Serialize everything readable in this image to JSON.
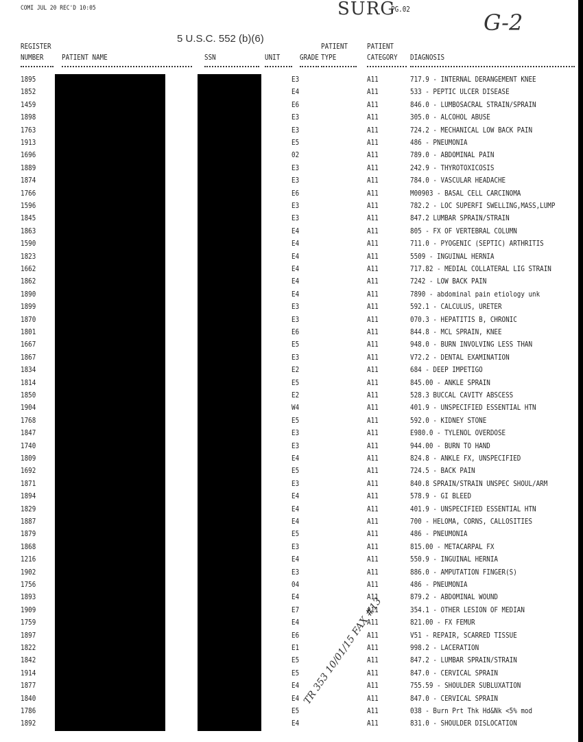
{
  "header": {
    "fax_line": "COMI  JUL 20 REC'D 10:05",
    "handwritten_dept": "SURG",
    "page": "PG.02",
    "handwritten_code": "G-2",
    "exemption": "5 U.S.C. 552 (b)(6)"
  },
  "table": {
    "columns": [
      [
        "REGISTER",
        "NUMBER"
      ],
      [
        "PATIENT NAME"
      ],
      [
        "SSN"
      ],
      [
        "UNIT"
      ],
      [
        "GRADE"
      ],
      [
        "PATIENT",
        "TYPE"
      ],
      [
        "PATIENT",
        "CATEGORY"
      ],
      [
        "DIAGNOSIS"
      ]
    ],
    "rows": [
      [
        "1895",
        "E3",
        "A11",
        "717.9 - INTERNAL DERANGEMENT KNEE"
      ],
      [
        "1852",
        "E4",
        "A11",
        "533 - PEPTIC ULCER DISEASE"
      ],
      [
        "1459",
        "E6",
        "A11",
        "846.0 - LUMBOSACRAL STRAIN/SPRAIN"
      ],
      [
        "1898",
        "E3",
        "A11",
        "305.0 - ALCOHOL ABUSE"
      ],
      [
        "1763",
        "E3",
        "A11",
        "724.2 - MECHANICAL LOW BACK PAIN"
      ],
      [
        "1913",
        "E5",
        "A11",
        "486 - PNEUMONIA"
      ],
      [
        "1696",
        "02",
        "A11",
        "789.0 - ABDOMINAL PAIN"
      ],
      [
        "1889",
        "E3",
        "A11",
        "242.9 - THYROTOXICOSIS"
      ],
      [
        "1874",
        "E3",
        "A11",
        "784.0 - VASCULAR HEADACHE"
      ],
      [
        "1766",
        "E6",
        "A11",
        "M00903 - BASAL CELL CARCINOMA"
      ],
      [
        "1596",
        "E3",
        "A11",
        "782.2 - LOC SUPERFI SWELLING,MASS,LUMP"
      ],
      [
        "1845",
        "E3",
        "A11",
        "847.2  LUMBAR SPRAIN/STRAIN"
      ],
      [
        "1863",
        "E4",
        "A11",
        "805 - FX OF VERTEBRAL COLUMN"
      ],
      [
        "1590",
        "E4",
        "A11",
        "711.0 - PYOGENIC (SEPTIC) ARTHRITIS"
      ],
      [
        "1823",
        "E4",
        "A11",
        "5509 - INGUINAL HERNIA"
      ],
      [
        "1662",
        "E4",
        "A11",
        "717.82 - MEDIAL COLLATERAL LIG STRAIN"
      ],
      [
        "1862",
        "E4",
        "A11",
        "7242 - LOW BACK PAIN"
      ],
      [
        "1890",
        "E4",
        "A11",
        "7890 - abdominal pain etiology unk"
      ],
      [
        "1899",
        "E3",
        "A11",
        "592.1 - CALCULUS, URETER"
      ],
      [
        "1870",
        "E3",
        "A11",
        "070.3 - HEPATITIS B, CHRONIC"
      ],
      [
        "1801",
        "E6",
        "A11",
        "844.8 - MCL SPRAIN, KNEE"
      ],
      [
        "1667",
        "E5",
        "A11",
        "948.0 - BURN INVOLVING LESS THAN"
      ],
      [
        "1867",
        "E3",
        "A11",
        "V72.2 - DENTAL EXAMINATION"
      ],
      [
        "1834",
        "E2",
        "A11",
        "684 - DEEP IMPETIGO"
      ],
      [
        "1814",
        "E5",
        "A11",
        "845.00 - ANKLE SPRAIN"
      ],
      [
        "1850",
        "E2",
        "A11",
        "528.3  BUCCAL CAVITY ABSCESS"
      ],
      [
        "1904",
        "W4",
        "A11",
        "401.9 - UNSPECIFIED ESSENTIAL HTN"
      ],
      [
        "1768",
        "E5",
        "A11",
        "592.0 - KIDNEY STONE"
      ],
      [
        "1847",
        "E3",
        "A11",
        "E980.0 - TYLENOL OVERDOSE"
      ],
      [
        "1740",
        "E3",
        "A11",
        "944.00 - BURN TO HAND"
      ],
      [
        "1809",
        "E4",
        "A11",
        "824.8 - ANKLE FX, UNSPECIFIED"
      ],
      [
        "1692",
        "E5",
        "A11",
        "724.5 - BACK PAIN"
      ],
      [
        "1871",
        "E3",
        "A11",
        "840.8  SPRAIN/STRAIN UNSPEC SHOUL/ARM"
      ],
      [
        "1894",
        "E4",
        "A11",
        "578.9 - GI BLEED"
      ],
      [
        "1829",
        "E4",
        "A11",
        "401.9 - UNSPECIFIED ESSENTIAL HTN"
      ],
      [
        "1887",
        "E4",
        "A11",
        "700 - HELOMA, CORNS, CALLOSITIES"
      ],
      [
        "1879",
        "E5",
        "A11",
        "486 - PNEUMONIA"
      ],
      [
        "1868",
        "E3",
        "A11",
        "815.00 - METACARPAL FX"
      ],
      [
        "1216",
        "E4",
        "A11",
        "550.9 - INGUINAL HERNIA"
      ],
      [
        "1902",
        "E3",
        "A11",
        "886.0 - AMPUTATION FINGER(S)"
      ],
      [
        "1756",
        "04",
        "A11",
        "486 - PNEUMONIA"
      ],
      [
        "1893",
        "E4",
        "A11",
        "879.2 - ABDOMINAL WOUND"
      ],
      [
        "1909",
        "E7",
        "A11",
        "354.1 - OTHER LESION OF MEDIAN"
      ],
      [
        "1759",
        "E4",
        "A11",
        "821.00 - FX FEMUR"
      ],
      [
        "1897",
        "E6",
        "A11",
        "V51 - REPAIR, SCARRED TISSUE"
      ],
      [
        "1822",
        "E1",
        "A11",
        "998.2 - LACERATION"
      ],
      [
        "1842",
        "E5",
        "A11",
        "847.2 - LUMBAR SPRAIN/STRAIN"
      ],
      [
        "1914",
        "E5",
        "A11",
        "847.0 - CERVICAL SPRAIN"
      ],
      [
        "1877",
        "E4",
        "A11",
        "755.59 - SHOULDER SUBLUXATION"
      ],
      [
        "1840",
        "E4",
        "A11",
        "847.0 - CERVICAL SPRAIN"
      ],
      [
        "1786",
        "E5",
        "A11",
        "038 - Burn Prt Thk Hd&Nk <5% mod"
      ],
      [
        "1892",
        "E4",
        "A11",
        "831.0 - SHOULDER DISLOCATION"
      ]
    ]
  },
  "annotations": {
    "handwritten_note": "TR 353 10/01/15 FAX #13"
  }
}
